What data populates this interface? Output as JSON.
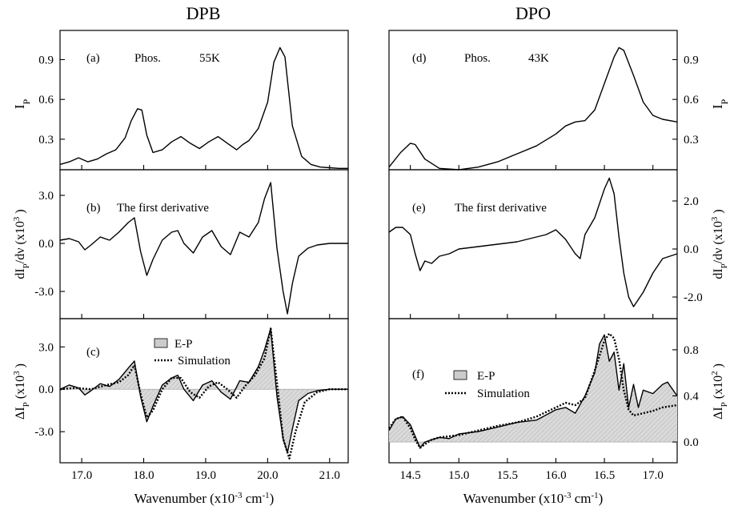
{
  "chart_data": [
    {
      "type": "line",
      "group_title": "DPB",
      "xlabel": "Wavenumber (x10⁻³ cm⁻¹)",
      "xlim": [
        16.65,
        21.3
      ],
      "xticks": [
        "17.0",
        "18.0",
        "19.0",
        "20.0",
        "21.0"
      ],
      "xtick_values": [
        17.0,
        18.0,
        19.0,
        20.0,
        21.0
      ],
      "panels": [
        {
          "id": "a",
          "label": "(a)",
          "annotation_left": "Phos.",
          "annotation_right": "55K",
          "ylabel": "I_P",
          "ylim": [
            0.07,
            1.12
          ],
          "yticks": [
            "0.3",
            "0.6",
            "0.9"
          ],
          "ytick_values": [
            0.3,
            0.6,
            0.9
          ],
          "series": [
            {
              "x": [
                16.65,
                16.8,
                16.95,
                17.1,
                17.25,
                17.4,
                17.55,
                17.7,
                17.8,
                17.9,
                17.97,
                18.05,
                18.15,
                18.3,
                18.45,
                18.6,
                18.75,
                18.9,
                19.05,
                19.2,
                19.35,
                19.5,
                19.6,
                19.7,
                19.85,
                20.0,
                20.1,
                20.2,
                20.28,
                20.4,
                20.55,
                20.7,
                20.85,
                21.0,
                21.15,
                21.3
              ],
              "y": [
                0.11,
                0.13,
                0.16,
                0.13,
                0.15,
                0.19,
                0.22,
                0.31,
                0.44,
                0.53,
                0.52,
                0.33,
                0.2,
                0.22,
                0.28,
                0.32,
                0.27,
                0.23,
                0.28,
                0.32,
                0.27,
                0.22,
                0.26,
                0.29,
                0.38,
                0.58,
                0.88,
                0.99,
                0.92,
                0.4,
                0.17,
                0.11,
                0.09,
                0.085,
                0.08,
                0.08
              ]
            }
          ]
        },
        {
          "id": "b",
          "label": "(b)",
          "annotation_left": "The first derivative",
          "ylabel": "dI_P/dν (x10³)",
          "ylim": [
            -4.7,
            4.6
          ],
          "yticks": [
            "3.0",
            "0.0",
            "-3.0"
          ],
          "ytick_values": [
            3.0,
            0.0,
            -3.0
          ],
          "series": [
            {
              "x": [
                16.65,
                16.8,
                16.95,
                17.05,
                17.15,
                17.3,
                17.45,
                17.6,
                17.75,
                17.85,
                17.95,
                18.05,
                18.15,
                18.3,
                18.45,
                18.55,
                18.65,
                18.8,
                18.95,
                19.1,
                19.25,
                19.4,
                19.55,
                19.7,
                19.85,
                19.95,
                20.05,
                20.15,
                20.25,
                20.32,
                20.4,
                20.5,
                20.65,
                20.8,
                21.0,
                21.15,
                21.3
              ],
              "y": [
                0.2,
                0.3,
                0.1,
                -0.4,
                -0.1,
                0.4,
                0.2,
                0.7,
                1.3,
                1.6,
                -0.5,
                -2.0,
                -1.0,
                0.2,
                0.7,
                0.8,
                0.0,
                -0.6,
                0.4,
                0.8,
                -0.2,
                -0.7,
                0.7,
                0.4,
                1.3,
                2.8,
                3.8,
                -0.3,
                -3.0,
                -4.4,
                -2.5,
                -0.8,
                -0.3,
                -0.1,
                0.0,
                0.0,
                0.0
              ]
            }
          ]
        },
        {
          "id": "c",
          "label": "(c)",
          "ylabel": "ΔI_P (x10³)",
          "ylim": [
            -5.2,
            5.0
          ],
          "yticks": [
            "3.0",
            "0.0",
            "-3.0"
          ],
          "ytick_values": [
            3.0,
            0.0,
            -3.0
          ],
          "legend_ep": "E-P",
          "legend_sim": "Simulation",
          "series": [
            {
              "name": "E-P",
              "x": [
                16.65,
                16.8,
                16.95,
                17.05,
                17.15,
                17.3,
                17.45,
                17.6,
                17.75,
                17.85,
                17.95,
                18.05,
                18.15,
                18.3,
                18.45,
                18.55,
                18.65,
                18.8,
                18.95,
                19.1,
                19.25,
                19.4,
                19.55,
                19.7,
                19.85,
                19.95,
                20.05,
                20.15,
                20.25,
                20.32,
                20.4,
                20.5,
                20.65,
                20.8,
                21.0,
                21.15,
                21.3
              ],
              "y": [
                0.0,
                0.3,
                0.1,
                -0.4,
                -0.1,
                0.4,
                0.2,
                0.7,
                1.5,
                2.0,
                -0.5,
                -2.3,
                -1.2,
                0.3,
                0.8,
                1.0,
                0.0,
                -0.8,
                0.3,
                0.6,
                -0.2,
                -0.7,
                0.6,
                0.5,
                1.6,
                2.8,
                4.3,
                -0.5,
                -3.5,
                -4.5,
                -2.8,
                -0.8,
                -0.3,
                -0.1,
                0.0,
                0.0,
                0.0
              ]
            },
            {
              "name": "Simulation",
              "x": [
                16.65,
                16.9,
                17.15,
                17.4,
                17.6,
                17.75,
                17.85,
                17.95,
                18.05,
                18.15,
                18.3,
                18.45,
                18.6,
                18.75,
                18.9,
                19.05,
                19.2,
                19.35,
                19.5,
                19.65,
                19.8,
                19.95,
                20.05,
                20.15,
                20.25,
                20.35,
                20.45,
                20.6,
                20.8,
                21.0,
                21.3
              ],
              "y": [
                0.0,
                0.1,
                0.0,
                0.3,
                0.5,
                1.0,
                1.7,
                -0.3,
                -2.0,
                -1.5,
                0.0,
                0.8,
                0.8,
                -0.2,
                -0.6,
                0.2,
                0.5,
                0.0,
                -0.6,
                0.3,
                1.0,
                2.2,
                4.3,
                0.5,
                -3.5,
                -4.9,
                -3.0,
                -0.9,
                -0.2,
                0.0,
                0.0
              ]
            }
          ]
        }
      ]
    },
    {
      "type": "line",
      "group_title": "DPO",
      "xlabel": "Wavenumber (x10⁻³ cm⁻¹)",
      "xlim": [
        14.28,
        17.25
      ],
      "xticks": [
        "14.5",
        "15.0",
        "15.5",
        "16.0",
        "16.5",
        "17.0"
      ],
      "xtick_values": [
        14.5,
        15.0,
        15.5,
        16.0,
        16.5,
        17.0
      ],
      "panels": [
        {
          "id": "d",
          "label": "(d)",
          "annotation_left": "Phos.",
          "annotation_right": "43K",
          "ylabel": "I_P",
          "ylim": [
            0.07,
            1.12
          ],
          "yticks": [
            "0.3",
            "0.6",
            "0.9"
          ],
          "ytick_values": [
            0.3,
            0.6,
            0.9
          ],
          "series": [
            {
              "x": [
                14.28,
                14.4,
                14.5,
                14.55,
                14.65,
                14.8,
                15.0,
                15.2,
                15.4,
                15.6,
                15.8,
                16.0,
                16.1,
                16.2,
                16.3,
                16.4,
                16.5,
                16.6,
                16.65,
                16.7,
                16.8,
                16.9,
                17.0,
                17.1,
                17.25
              ],
              "y": [
                0.09,
                0.2,
                0.27,
                0.26,
                0.15,
                0.08,
                0.07,
                0.09,
                0.13,
                0.19,
                0.25,
                0.34,
                0.4,
                0.43,
                0.44,
                0.52,
                0.72,
                0.92,
                0.99,
                0.97,
                0.78,
                0.58,
                0.48,
                0.45,
                0.43
              ]
            }
          ]
        },
        {
          "id": "e",
          "label": "(e)",
          "annotation_left": "The first derivative",
          "ylabel": "dI_P/dν (x10³)",
          "ylim": [
            -2.9,
            3.3
          ],
          "yticks": [
            "2.0",
            "0.0",
            "-2.0"
          ],
          "ytick_values": [
            2.0,
            0.0,
            -2.0
          ],
          "series": [
            {
              "x": [
                14.28,
                14.35,
                14.42,
                14.5,
                14.55,
                14.6,
                14.65,
                14.72,
                14.8,
                14.9,
                15.0,
                15.2,
                15.4,
                15.6,
                15.8,
                15.9,
                16.0,
                16.1,
                16.2,
                16.25,
                16.3,
                16.4,
                16.5,
                16.55,
                16.6,
                16.65,
                16.7,
                16.75,
                16.8,
                16.9,
                17.0,
                17.1,
                17.25
              ],
              "y": [
                0.7,
                0.9,
                0.9,
                0.6,
                -0.2,
                -0.9,
                -0.5,
                -0.6,
                -0.3,
                -0.2,
                0.0,
                0.1,
                0.2,
                0.3,
                0.5,
                0.6,
                0.8,
                0.4,
                -0.2,
                -0.4,
                0.6,
                1.3,
                2.5,
                2.95,
                2.3,
                0.5,
                -1.0,
                -2.0,
                -2.4,
                -1.8,
                -1.0,
                -0.4,
                -0.2
              ]
            }
          ]
        },
        {
          "id": "f",
          "label": "(f)",
          "ylabel": "ΔI_P (x10²)",
          "ylim": [
            -0.18,
            1.07
          ],
          "yticks": [
            "0.0",
            "0.4",
            "0.8"
          ],
          "ytick_values": [
            0.0,
            0.4,
            0.8
          ],
          "legend_ep": "E-P",
          "legend_sim": "Simulation",
          "series": [
            {
              "name": "E-P",
              "x": [
                14.28,
                14.35,
                14.42,
                14.5,
                14.55,
                14.6,
                14.65,
                14.72,
                14.8,
                14.9,
                15.0,
                15.2,
                15.4,
                15.6,
                15.8,
                16.0,
                16.1,
                16.2,
                16.3,
                16.4,
                16.45,
                16.5,
                16.55,
                16.6,
                16.65,
                16.7,
                16.75,
                16.8,
                16.85,
                16.9,
                17.0,
                17.1,
                17.15,
                17.25
              ],
              "y": [
                0.1,
                0.2,
                0.22,
                0.15,
                0.05,
                -0.05,
                0.0,
                0.02,
                0.04,
                0.03,
                0.07,
                0.09,
                0.13,
                0.17,
                0.19,
                0.28,
                0.3,
                0.25,
                0.4,
                0.6,
                0.85,
                0.93,
                0.7,
                0.78,
                0.45,
                0.68,
                0.3,
                0.5,
                0.3,
                0.45,
                0.42,
                0.5,
                0.52,
                0.4
              ]
            },
            {
              "name": "Simulation",
              "x": [
                14.28,
                14.35,
                14.42,
                14.5,
                14.55,
                14.6,
                14.65,
                14.72,
                14.8,
                14.9,
                15.0,
                15.2,
                15.4,
                15.6,
                15.8,
                16.0,
                16.1,
                16.2,
                16.3,
                16.4,
                16.5,
                16.55,
                16.6,
                16.65,
                16.7,
                16.75,
                16.8,
                16.9,
                17.0,
                17.1,
                17.25
              ],
              "y": [
                0.12,
                0.2,
                0.22,
                0.12,
                0.02,
                -0.05,
                -0.02,
                0.02,
                0.04,
                0.05,
                0.06,
                0.1,
                0.14,
                0.17,
                0.22,
                0.3,
                0.34,
                0.32,
                0.38,
                0.62,
                0.88,
                0.94,
                0.9,
                0.72,
                0.45,
                0.28,
                0.23,
                0.25,
                0.27,
                0.3,
                0.32
              ]
            }
          ]
        }
      ]
    }
  ]
}
